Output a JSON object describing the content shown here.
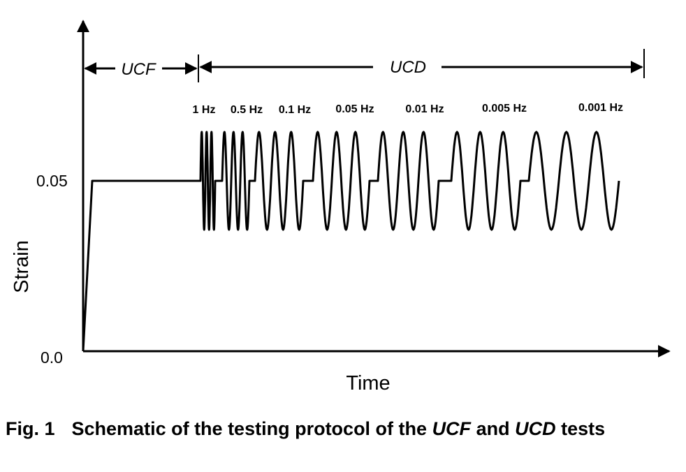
{
  "axes": {
    "y_label": "Strain",
    "x_label": "Time",
    "y_ticks": [
      "0.05",
      "0.0"
    ]
  },
  "phases": {
    "ucf": "UCF",
    "ucd": "UCD"
  },
  "frequencies": [
    "1 Hz",
    "0.5 Hz",
    "0.1 Hz",
    "0.05 Hz",
    "0.01 Hz",
    "0.005 Hz",
    "0.001 Hz"
  ],
  "caption": {
    "label": "Fig. 1",
    "text_1": "Schematic of the testing protocol of the ",
    "term_1": "UCF",
    "text_2": " and ",
    "term_2": "UCD",
    "text_3": " tests"
  }
}
